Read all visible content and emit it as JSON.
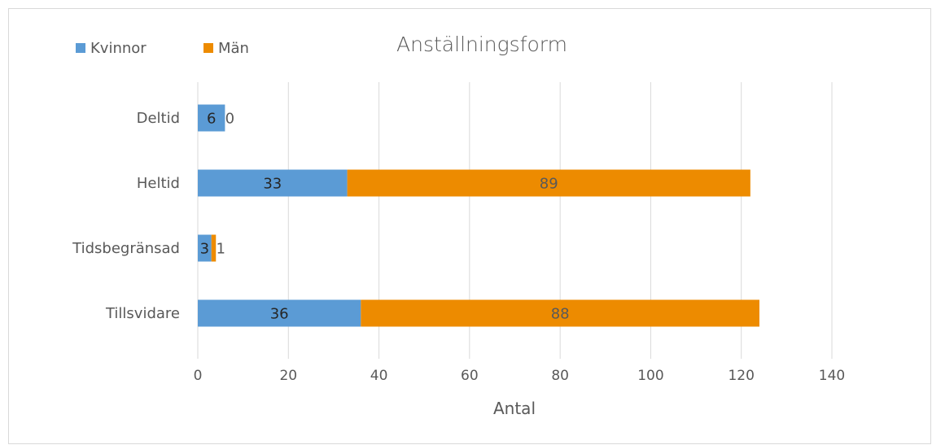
{
  "chart_data": {
    "type": "bar",
    "orientation": "horizontal",
    "stacked": true,
    "title": "Anställningsform",
    "xlabel": "Antal",
    "ylabel": "",
    "categories": [
      "Deltid",
      "Heltid",
      "Tidsbegränsad",
      "Tillsvidare"
    ],
    "series": [
      {
        "name": "Kvinnor",
        "color": "#5b9bd5",
        "values": [
          6,
          33,
          3,
          36
        ]
      },
      {
        "name": "Män",
        "color": "#ed8b00",
        "values": [
          0,
          89,
          1,
          88
        ]
      }
    ],
    "xlim": [
      0,
      140
    ],
    "xticks": [
      0,
      20,
      40,
      60,
      80,
      100,
      120,
      140
    ],
    "grid": true,
    "data_labels": true,
    "legend_position": "top-left"
  }
}
